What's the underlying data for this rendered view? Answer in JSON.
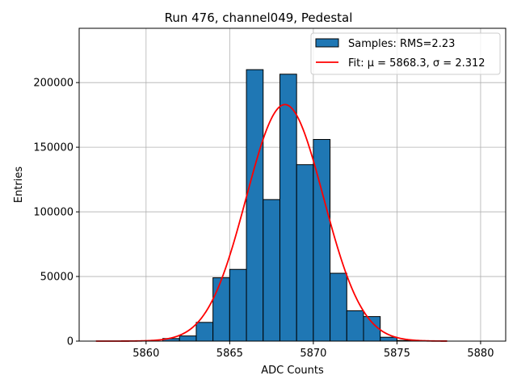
{
  "chart_data": {
    "type": "bar",
    "title": "Run 476, channel049, Pedestal",
    "xlabel": "ADC Counts",
    "ylabel": "Entries",
    "xlim": [
      5856,
      5881.5
    ],
    "ylim": [
      0,
      242000
    ],
    "grid": true,
    "legend_position": "top-right",
    "xticks": [
      5860,
      5865,
      5870,
      5875,
      5880
    ],
    "yticks": [
      0,
      50000,
      100000,
      150000,
      200000
    ],
    "bin_width": 1,
    "bins": [
      {
        "left": 5861,
        "value": 2000
      },
      {
        "left": 5862,
        "value": 4000
      },
      {
        "left": 5863,
        "value": 14500
      },
      {
        "left": 5864,
        "value": 49000
      },
      {
        "left": 5865,
        "value": 55500
      },
      {
        "left": 5866,
        "value": 210000
      },
      {
        "left": 5867,
        "value": 109500
      },
      {
        "left": 5868,
        "value": 206500
      },
      {
        "left": 5869,
        "value": 136500
      },
      {
        "left": 5870,
        "value": 156000
      },
      {
        "left": 5871,
        "value": 52500
      },
      {
        "left": 5872,
        "value": 23500
      },
      {
        "left": 5873,
        "value": 19000
      },
      {
        "left": 5874,
        "value": 3000
      },
      {
        "left": 5875,
        "value": 500
      }
    ],
    "fit": {
      "mu": 5868.3,
      "sigma": 2.312,
      "amplitude": 183000,
      "x_range": [
        5857,
        5878
      ]
    },
    "series": [
      {
        "name": "Samples: RMS=2.23",
        "kind": "histogram",
        "color": "#1f77b4"
      },
      {
        "name": "Fit: μ = 5868.3, σ = 2.312",
        "kind": "line",
        "color": "#ff0000"
      }
    ]
  },
  "colors": {
    "bar_fill": "#1f77b4",
    "bar_edge": "#000000",
    "fit_line": "#ff0000",
    "grid": "#b0b0b0"
  }
}
